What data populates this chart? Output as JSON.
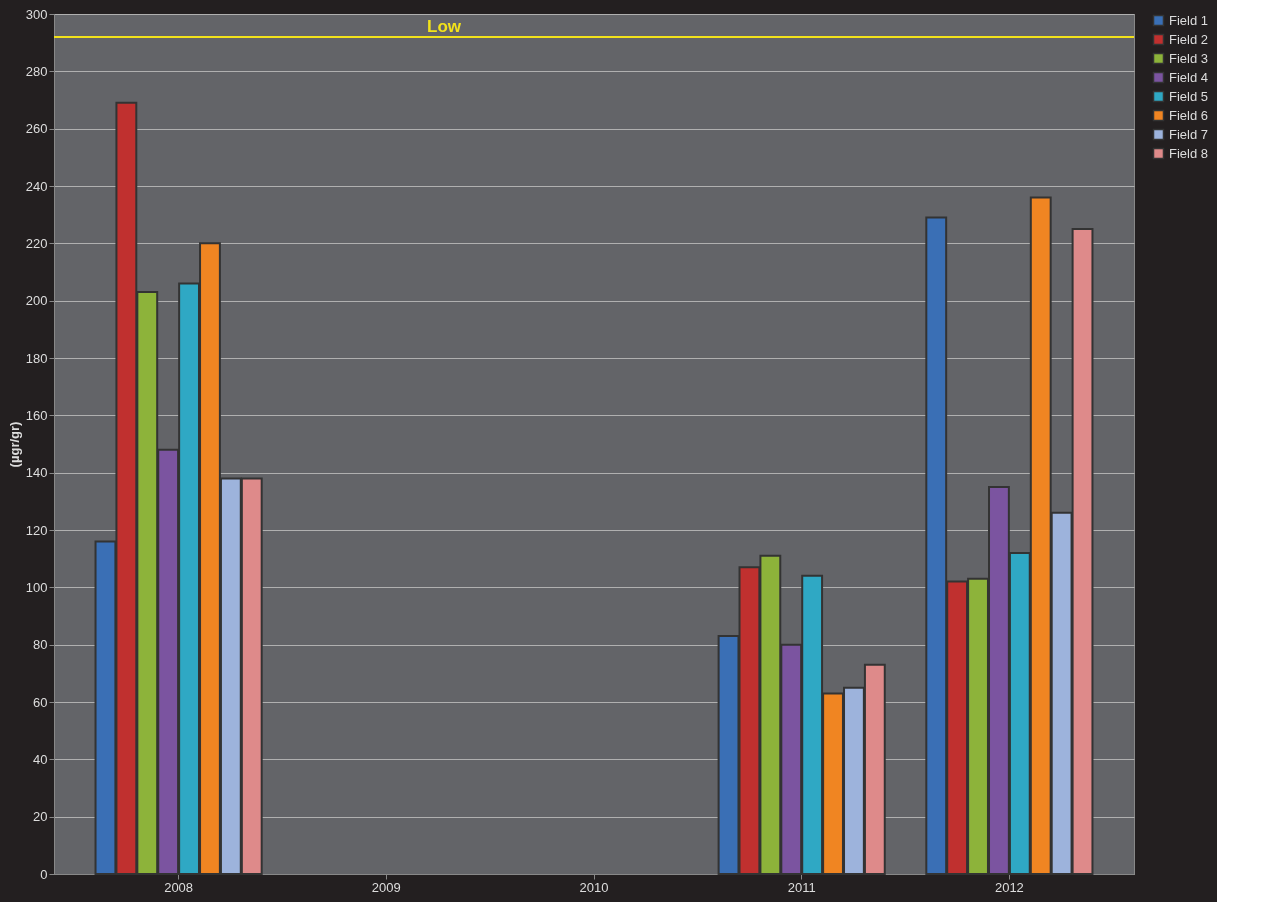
{
  "chart_data": {
    "type": "bar",
    "ylabel": "(µgr/gr)",
    "categories": [
      "2008",
      "2009",
      "2010",
      "2011",
      "2012"
    ],
    "series": [
      {
        "name": "Field 1",
        "color": "#3a6fb5",
        "values": [
          116,
          null,
          null,
          83,
          229
        ]
      },
      {
        "name": "Field 2",
        "color": "#c0302f",
        "values": [
          269,
          null,
          null,
          107,
          102
        ]
      },
      {
        "name": "Field 3",
        "color": "#8db33a",
        "values": [
          203,
          null,
          null,
          111,
          103
        ]
      },
      {
        "name": "Field 4",
        "color": "#7b54a0",
        "values": [
          148,
          null,
          null,
          80,
          135
        ]
      },
      {
        "name": "Field 5",
        "color": "#2fa8c4",
        "values": [
          206,
          null,
          null,
          104,
          112
        ]
      },
      {
        "name": "Field 6",
        "color": "#f08522",
        "values": [
          220,
          null,
          null,
          63,
          236
        ]
      },
      {
        "name": "Field 7",
        "color": "#9db3dc",
        "values": [
          138,
          null,
          null,
          65,
          126
        ]
      },
      {
        "name": "Field 8",
        "color": "#de8a8a",
        "values": [
          138,
          null,
          null,
          73,
          225
        ]
      }
    ],
    "ylim": [
      0,
      300
    ],
    "yticks": [
      0,
      20,
      40,
      60,
      80,
      100,
      120,
      140,
      160,
      180,
      200,
      220,
      240,
      260,
      280,
      300
    ],
    "grid": "y",
    "legend": "right",
    "ref_lines": [
      {
        "axis": "y",
        "value": 292,
        "label": "Low",
        "color": "#f2e21b",
        "line_style": "solid"
      }
    ]
  }
}
